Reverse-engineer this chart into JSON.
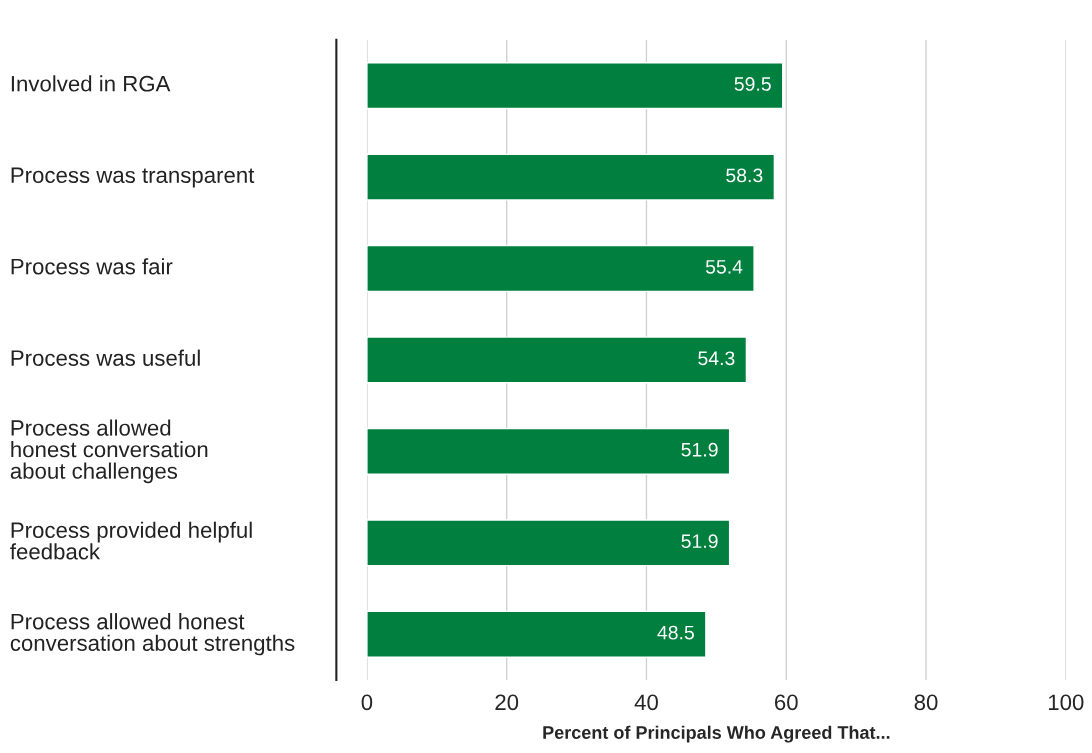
{
  "chart_data": {
    "type": "bar",
    "orientation": "horizontal",
    "xlabel": "Percent of Principals Who Agreed That...",
    "categories": [
      "Involved in RGA",
      "Process was transparent",
      "Process was fair",
      "Process was useful",
      "Process allowed\nhonest conversation\nabout challenges",
      "Process provided helpful\nfeedback",
      "Process allowed honest\nconversation about strengths"
    ],
    "values": [
      59.5,
      58.3,
      55.4,
      54.3,
      51.9,
      51.9,
      48.5
    ],
    "color": "#007f3f",
    "xlim": [
      0,
      100
    ],
    "xticks": [
      0,
      20,
      40,
      60,
      80,
      100
    ],
    "grid": "x",
    "data_labels": true
  }
}
